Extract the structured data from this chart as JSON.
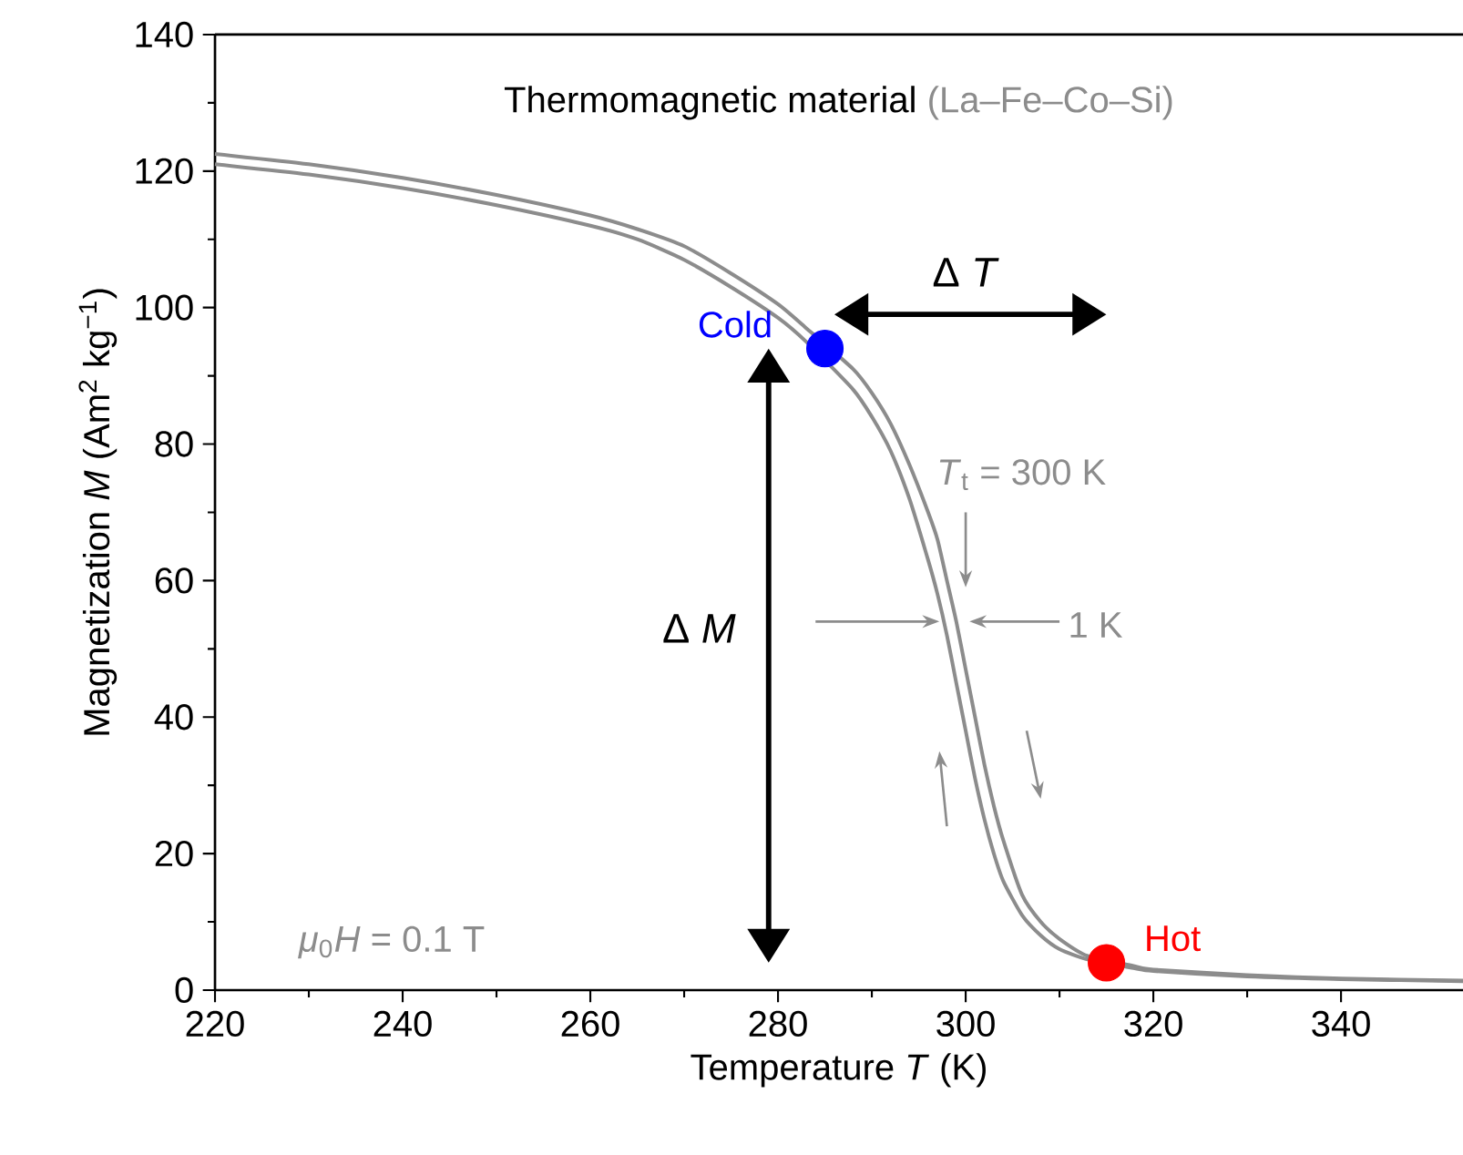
{
  "chart_data": {
    "type": "line",
    "title": "Thermomagnetic material",
    "subtitle": "(La–Fe–Co–Si)",
    "xlabel": "Temperature *T* (K)",
    "ylabel": "Magnetization *M* (Am$^{2}$ kg$^{−1}$)",
    "xlim": [
      220,
      353
    ],
    "ylim": [
      0,
      140
    ],
    "xticks": [
      220,
      {
        "value": 230,
        "label": null
      },
      240,
      {
        "value": 250,
        "label": null
      },
      260,
      {
        "value": 270,
        "label": null
      },
      280,
      {
        "value": 290,
        "label": null
      },
      300,
      {
        "value": 310,
        "label": null
      },
      320,
      {
        "value": 330,
        "label": null
      },
      340
    ],
    "yticks": [
      0,
      {
        "value": 10,
        "label": null
      },
      20,
      {
        "value": 30,
        "label": null
      },
      40,
      {
        "value": 50,
        "label": null
      },
      60,
      {
        "value": 70,
        "label": null
      },
      80,
      {
        "value": 90,
        "label": null
      },
      100,
      {
        "value": 110,
        "label": null
      },
      120,
      {
        "value": 130,
        "label": null
      },
      140
    ],
    "series": [
      {
        "color": "#8c8c8c",
        "x": [
          220,
          230,
          240,
          250,
          260,
          265,
          270,
          275,
          280,
          283,
          288,
          290,
          292,
          294,
          296,
          297,
          298,
          299,
          300,
          301,
          302,
          303,
          304,
          306,
          308,
          310,
          313,
          318,
          320,
          330,
          340,
          353
        ],
        "values": [
          121,
          119.5,
          117.5,
          115,
          112,
          110,
          107,
          103,
          98.5,
          95,
          88,
          84,
          79,
          72,
          63,
          58,
          52,
          45,
          38,
          31,
          25,
          20,
          16,
          11,
          8,
          6,
          4.5,
          3.2,
          2.8,
          2,
          1.6,
          1.3
        ]
      },
      {
        "color": "#8c8c8c",
        "x": [
          220,
          230,
          240,
          250,
          260,
          265,
          270,
          275,
          280,
          283,
          288,
          290,
          292,
          294,
          296,
          297,
          298,
          299,
          300,
          301,
          302,
          303,
          304,
          306,
          308,
          310,
          313,
          318,
          320,
          330,
          340,
          353
        ],
        "values": [
          122.5,
          121,
          119,
          116.5,
          113.5,
          111.5,
          109,
          105,
          100.5,
          97,
          91,
          87.5,
          83,
          77,
          70,
          66,
          60,
          54,
          47,
          40,
          33,
          27,
          22,
          14,
          10,
          7.5,
          5,
          3.5,
          3,
          2.2,
          1.7,
          1.4
        ]
      },
      {
        "type": "scatter",
        "marker": "circle",
        "x": [
          285,
          315
        ],
        "values": [
          94,
          4
        ],
        "colors": [
          "#0000ff",
          "#ff0000"
        ]
      }
    ],
    "annotations": [
      {
        "text": "Cold",
        "x": 285,
        "y": 94
      },
      {
        "text": "Hot",
        "x": 315,
        "y": 4
      },
      "Δ *T*",
      "Δ *M*",
      "*T*$_{t}$ = 300 K",
      "1 K",
      "*μ*$_{0}$*H* = 0.1 T"
    ]
  }
}
